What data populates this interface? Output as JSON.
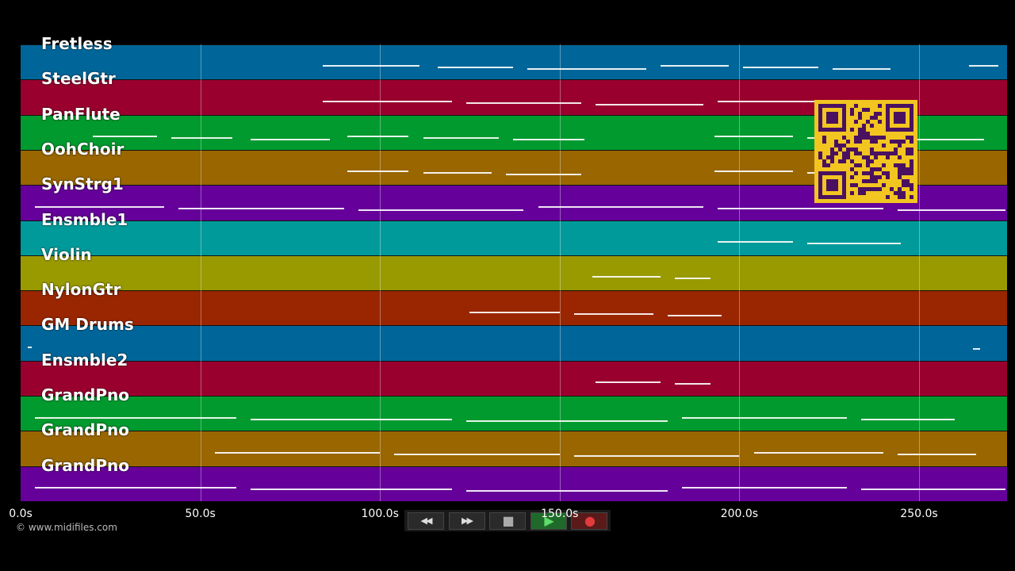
{
  "colors": {
    "background": "#000000",
    "lane_cycle": [
      "#006699",
      "#99002e",
      "#009a2e",
      "#996600",
      "#66009a",
      "#009a9a",
      "#999900",
      "#992600"
    ],
    "note": "#ffffff",
    "qr_fill": "#f2c521",
    "qr_dark": "#4a1160"
  },
  "tracks": [
    {
      "label": "Fretless",
      "color": "#006699",
      "notes": [
        [
          84,
          111
        ],
        [
          116,
          137
        ],
        [
          141,
          174
        ],
        [
          178,
          197
        ],
        [
          201,
          222
        ],
        [
          226,
          242
        ],
        [
          264,
          272
        ]
      ]
    },
    {
      "label": "SteelGtr",
      "color": "#99002e",
      "notes": [
        [
          84,
          120
        ],
        [
          124,
          156
        ],
        [
          160,
          190
        ],
        [
          194,
          223
        ],
        [
          227,
          242
        ]
      ]
    },
    {
      "label": "PanFlute",
      "color": "#009a2e",
      "notes": [
        [
          20,
          38
        ],
        [
          42,
          59
        ],
        [
          64,
          86
        ],
        [
          91,
          108
        ],
        [
          112,
          133
        ],
        [
          137,
          157
        ],
        [
          193,
          215
        ],
        [
          219,
          238
        ],
        [
          243,
          268
        ]
      ]
    },
    {
      "label": "OohChoir",
      "color": "#996600",
      "notes": [
        [
          91,
          108
        ],
        [
          112,
          131
        ],
        [
          135,
          156
        ],
        [
          193,
          215
        ],
        [
          219,
          238
        ]
      ]
    },
    {
      "label": "SynStrg1",
      "color": "#66009a",
      "notes": [
        [
          4,
          40
        ],
        [
          44,
          90
        ],
        [
          94,
          140
        ],
        [
          144,
          190
        ],
        [
          194,
          240
        ],
        [
          244,
          274
        ]
      ]
    },
    {
      "label": "Ensmble1",
      "color": "#009a9a",
      "notes": [
        [
          194,
          215
        ],
        [
          219,
          245
        ]
      ]
    },
    {
      "label": "Violin",
      "color": "#999900",
      "notes": [
        [
          159,
          178
        ],
        [
          182,
          192
        ]
      ]
    },
    {
      "label": "NylonGtr",
      "color": "#992600",
      "notes": [
        [
          125,
          150
        ],
        [
          154,
          176
        ],
        [
          180,
          195
        ]
      ]
    },
    {
      "label": "GM Drums",
      "color": "#006699",
      "notes": [
        [
          2,
          3
        ],
        [
          265,
          267
        ]
      ]
    },
    {
      "label": "Ensmble2",
      "color": "#99002e",
      "notes": [
        [
          160,
          178
        ],
        [
          182,
          192
        ]
      ]
    },
    {
      "label": "GrandPno",
      "color": "#009a2e",
      "notes": [
        [
          4,
          60
        ],
        [
          64,
          120
        ],
        [
          124,
          180
        ],
        [
          184,
          230
        ],
        [
          234,
          260
        ]
      ]
    },
    {
      "label": "GrandPno",
      "color": "#996600",
      "notes": [
        [
          54,
          100
        ],
        [
          104,
          150
        ],
        [
          154,
          200
        ],
        [
          204,
          240
        ],
        [
          244,
          266
        ]
      ]
    },
    {
      "label": "GrandPno",
      "color": "#66009a",
      "notes": [
        [
          4,
          60
        ],
        [
          64,
          120
        ],
        [
          124,
          180
        ],
        [
          184,
          230
        ],
        [
          234,
          274
        ]
      ]
    }
  ],
  "timeline": {
    "max_seconds": 274.5,
    "ticks": [
      {
        "value": 0,
        "label": "0.0s"
      },
      {
        "value": 50,
        "label": "50.0s"
      },
      {
        "value": 100,
        "label": "100.0s"
      },
      {
        "value": 150,
        "label": "150.0s"
      },
      {
        "value": 200,
        "label": "200.0s"
      },
      {
        "value": 250,
        "label": "250.0s"
      }
    ]
  },
  "copyright": "© www.midifiles.com",
  "transport": {
    "buttons": [
      {
        "name": "rewind-button",
        "icon": "rewind-icon",
        "glyph": "◀◀"
      },
      {
        "name": "fast-forward-button",
        "icon": "fast-forward-icon",
        "glyph": "▶▶"
      },
      {
        "name": "stop-button",
        "icon": "stop-icon",
        "glyph": "■"
      },
      {
        "name": "play-button",
        "icon": "play-icon",
        "glyph": "▶"
      },
      {
        "name": "record-button",
        "icon": "record-icon",
        "glyph": "●"
      }
    ]
  },
  "qr": {
    "icon": "qr-code-icon"
  }
}
